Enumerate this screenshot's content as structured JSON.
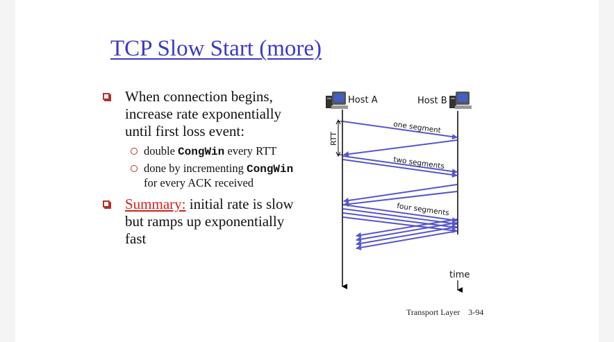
{
  "title": "TCP Slow Start (more)",
  "bullets": {
    "b1": "When connection begins, increase rate exponentially until first loss event:",
    "sub1_pre": "double ",
    "sub1_code": "CongWin",
    "sub1_post": " every RTT",
    "sub2_pre": "done by incrementing ",
    "sub2_code": "CongWin",
    "sub2_post": " for every ACK received",
    "b2_link": "Summary:",
    "b2_rest": " initial rate is slow but ramps up exponentially fast"
  },
  "diagram": {
    "host_a": "Host A",
    "host_b": "Host B",
    "rtt": "RTT",
    "one_segment": "one segment",
    "two_segments": "two segments",
    "four_segments": "four segments",
    "time": "time",
    "colors": {
      "arrow": "#5555cc",
      "line": "#000000"
    }
  },
  "footer": {
    "chapter": "Transport Layer",
    "page": "3-94"
  }
}
